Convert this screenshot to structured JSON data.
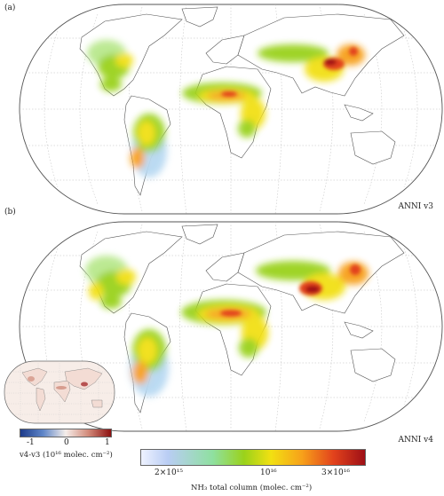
{
  "panel_a": {
    "label": "(a)",
    "caption": "ANNI v3"
  },
  "panel_b": {
    "label": "(b)",
    "caption": "ANNI v4"
  },
  "main_colorbar": {
    "ticks": [
      "2×10¹⁵",
      "10¹⁶",
      "3×10¹⁶"
    ],
    "label": "NH₃ total column  (molec. cm⁻²)",
    "colors": [
      "#eef2ff",
      "#b9cdf4",
      "#8fe0a0",
      "#9ad21a",
      "#f2e012",
      "#f7a01a",
      "#e2421c",
      "#9e0f16"
    ]
  },
  "diff_colorbar": {
    "ticks": [
      "-1",
      "0",
      "1"
    ],
    "label": "v4-v3 (10¹⁶ molec. cm⁻²)",
    "colors": [
      "#1d3b8a",
      "#5f86c8",
      "#f5eeea",
      "#d28a7a",
      "#8c1010"
    ]
  }
}
